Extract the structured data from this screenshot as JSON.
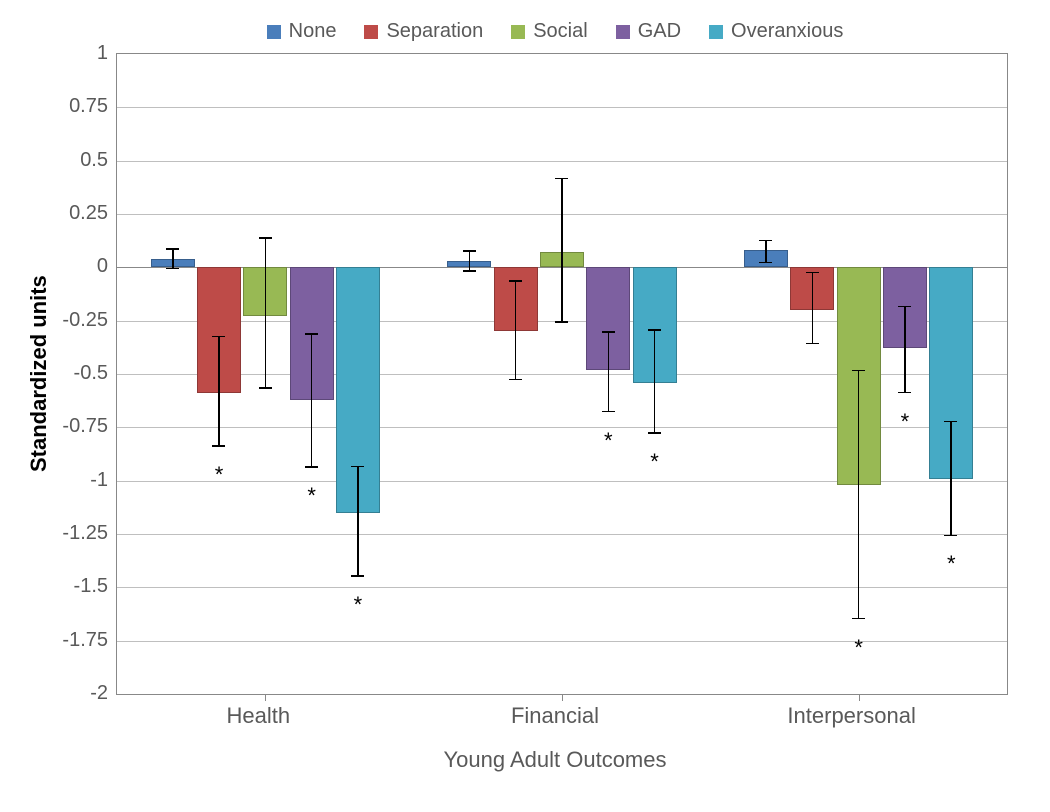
{
  "chart": {
    "type": "bar",
    "ylabel": "Standardized units",
    "xlabel": "Young Adult Outcomes",
    "ylim": [
      -2,
      1
    ],
    "ytick_step": 0.25,
    "yticks": [
      1,
      0.75,
      0.5,
      0.25,
      0,
      -0.25,
      -0.5,
      -0.75,
      -1,
      -1.25,
      -1.5,
      -1.75,
      -2
    ],
    "background_color": "#ffffff",
    "grid_color": "#bfbfbf",
    "axis_color": "#888888",
    "tick_font_color": "#595959",
    "tick_fontsize": 20,
    "label_fontsize": 22,
    "ylabel_fontsize": 22,
    "ylabel_fontweight": "bold",
    "bar_border_color": "rgba(0,0,0,0.25)",
    "groups": [
      "Health",
      "Financial",
      "Interpersonal"
    ],
    "series": [
      {
        "name": "None",
        "color": "#4a7ebb"
      },
      {
        "name": "Separation",
        "color": "#be4b48"
      },
      {
        "name": "Social",
        "color": "#98b954"
      },
      {
        "name": "GAD",
        "color": "#7d60a0"
      },
      {
        "name": "Overanxious",
        "color": "#46aac5"
      }
    ],
    "data": {
      "Health": [
        {
          "value": 0.04,
          "err_low": 0.05,
          "err_high": 0.05,
          "sig": false
        },
        {
          "value": -0.59,
          "err_low": 0.25,
          "err_high": 0.27,
          "sig": true
        },
        {
          "value": -0.23,
          "err_low": 0.34,
          "err_high": 0.37,
          "sig": false
        },
        {
          "value": -0.62,
          "err_low": 0.32,
          "err_high": 0.31,
          "sig": true
        },
        {
          "value": -1.15,
          "err_low": 0.3,
          "err_high": 0.22,
          "sig": true
        }
      ],
      "Financial": [
        {
          "value": 0.03,
          "err_low": 0.05,
          "err_high": 0.05,
          "sig": false
        },
        {
          "value": -0.3,
          "err_low": 0.23,
          "err_high": 0.24,
          "sig": false
        },
        {
          "value": 0.07,
          "err_low": 0.33,
          "err_high": 0.35,
          "sig": false
        },
        {
          "value": -0.48,
          "err_low": 0.2,
          "err_high": 0.18,
          "sig": true
        },
        {
          "value": -0.54,
          "err_low": 0.24,
          "err_high": 0.25,
          "sig": true
        }
      ],
      "Interpersonal": [
        {
          "value": 0.08,
          "err_low": 0.06,
          "err_high": 0.05,
          "sig": false
        },
        {
          "value": -0.2,
          "err_low": 0.16,
          "err_high": 0.18,
          "sig": false
        },
        {
          "value": -1.02,
          "err_low": 0.63,
          "err_high": 0.54,
          "sig": true
        },
        {
          "value": -0.38,
          "err_low": 0.21,
          "err_high": 0.2,
          "sig": true
        },
        {
          "value": -0.99,
          "err_low": 0.27,
          "err_high": 0.27,
          "sig": true
        }
      ]
    },
    "star_symbol": "*",
    "star_offset_below_errbar": 0.1,
    "bar_width_ratio": 0.95,
    "error_cap_width": 13
  }
}
